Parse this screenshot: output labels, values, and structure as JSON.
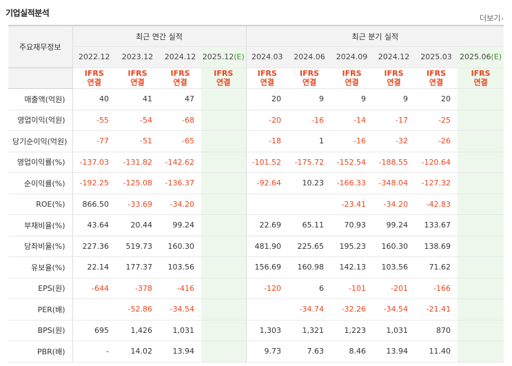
{
  "title": "기업실적분석",
  "more_label": "더보기",
  "header": {
    "row_label": "주요재무정보",
    "annual_label": "최근 연간 실적",
    "quarter_label": "최근 분기 실적",
    "annual_periods": [
      "2022.12",
      "2023.12",
      "2024.12",
      "2025.12(E)"
    ],
    "quarter_periods": [
      "2024.03",
      "2024.06",
      "2024.09",
      "2024.12",
      "2025.03",
      "2025.06(E)"
    ],
    "ifrs_top": "IFRS",
    "ifrs_bottom": "연결"
  },
  "rows": [
    {
      "label": "매출액(억원)",
      "values": [
        "40",
        "41",
        "47",
        "",
        "20",
        "9",
        "9",
        "9",
        "20",
        ""
      ]
    },
    {
      "label": "영업이익(억원)",
      "values": [
        "-55",
        "-54",
        "-68",
        "",
        "-20",
        "-16",
        "-14",
        "-17",
        "-25",
        ""
      ]
    },
    {
      "label": "당기순이익(억원)",
      "values": [
        "-77",
        "-51",
        "-65",
        "",
        "-18",
        "1",
        "-16",
        "-32",
        "-26",
        ""
      ]
    },
    {
      "label": "영업이익률(%)",
      "values": [
        "-137.03",
        "-131.82",
        "-142.62",
        "",
        "-101.52",
        "-175.72",
        "-152.54",
        "-188.55",
        "-120.64",
        ""
      ]
    },
    {
      "label": "순이익률(%)",
      "values": [
        "-192.25",
        "-125.08",
        "-136.37",
        "",
        "-92.64",
        "10.23",
        "-166.33",
        "-348.04",
        "-127.32",
        ""
      ]
    },
    {
      "label": "ROE(%)",
      "values": [
        "866.50",
        "-33.69",
        "-34.20",
        "",
        "",
        "",
        "-23.41",
        "-34.20",
        "-42.83",
        ""
      ]
    },
    {
      "label": "부채비율(%)",
      "values": [
        "43.64",
        "20.44",
        "99.24",
        "",
        "22.69",
        "65.11",
        "70.93",
        "99.24",
        "133.67",
        ""
      ]
    },
    {
      "label": "당좌비율(%)",
      "values": [
        "227.36",
        "519.73",
        "160.30",
        "",
        "481.90",
        "225.65",
        "195.23",
        "160.30",
        "138.69",
        ""
      ]
    },
    {
      "label": "유보율(%)",
      "values": [
        "22.14",
        "177.37",
        "103.56",
        "",
        "156.69",
        "160.98",
        "142.13",
        "103.56",
        "71.62",
        ""
      ]
    },
    {
      "label": "EPS(원)",
      "values": [
        "-644",
        "-378",
        "-416",
        "",
        "-120",
        "6",
        "-101",
        "-201",
        "-166",
        ""
      ]
    },
    {
      "label": "PER(배)",
      "values": [
        "",
        "-52.86",
        "-34.54",
        "",
        "",
        "-34.74",
        "-32.26",
        "-34.54",
        "-21.41",
        ""
      ]
    },
    {
      "label": "BPS(원)",
      "values": [
        "695",
        "1,426",
        "1,031",
        "",
        "1,303",
        "1,321",
        "1,223",
        "1,031",
        "870",
        ""
      ]
    },
    {
      "label": "PBR(배)",
      "values": [
        "-",
        "14.02",
        "13.94",
        "",
        "9.73",
        "7.63",
        "8.46",
        "13.94",
        "11.40",
        ""
      ]
    }
  ]
}
